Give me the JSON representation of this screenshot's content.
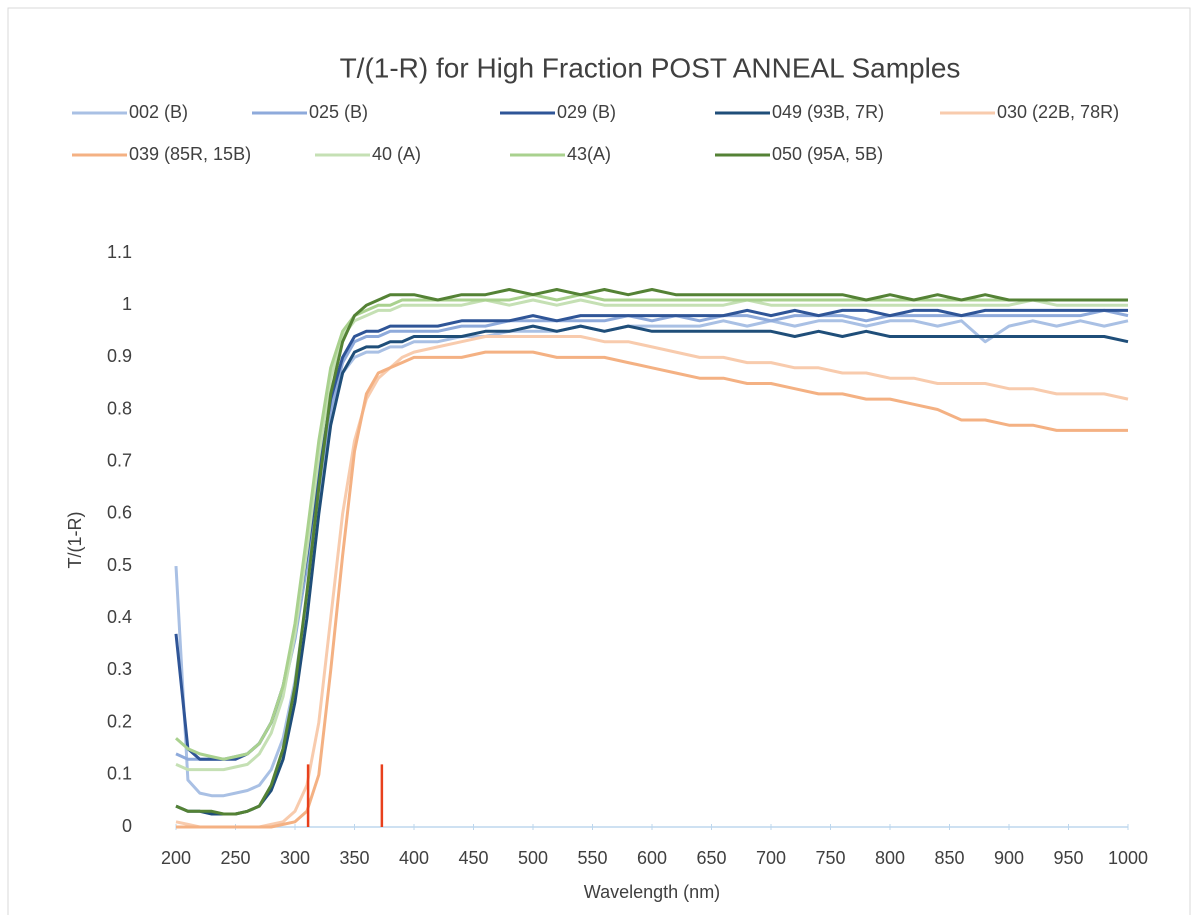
{
  "chart_data": {
    "type": "line",
    "title": "T/(1-R) for High Fraction POST ANNEAL Samples",
    "x_label": "Wavelength (nm)",
    "y_label": "T/(1-R)",
    "x": [
      200,
      210,
      220,
      230,
      240,
      250,
      260,
      270,
      280,
      290,
      300,
      310,
      320,
      330,
      340,
      350,
      360,
      370,
      380,
      390,
      400,
      420,
      440,
      460,
      480,
      500,
      520,
      540,
      560,
      580,
      600,
      620,
      640,
      660,
      680,
      700,
      720,
      740,
      760,
      780,
      800,
      820,
      840,
      860,
      880,
      900,
      920,
      940,
      960,
      980,
      1000
    ],
    "xlim": [
      200,
      1000
    ],
    "xticks": [
      200,
      250,
      300,
      350,
      400,
      450,
      500,
      550,
      600,
      650,
      700,
      750,
      800,
      850,
      900,
      950,
      1000
    ],
    "ylim": [
      0,
      1.1
    ],
    "yticks": [
      0,
      0.1,
      0.2,
      0.3,
      0.4,
      0.5,
      0.6,
      0.7,
      0.8,
      0.9,
      1,
      1.1
    ],
    "grid": false,
    "series": [
      {
        "name": "002 (B)",
        "color": "#a9c0e4",
        "values": [
          0.5,
          0.09,
          0.065,
          0.06,
          0.06,
          0.065,
          0.07,
          0.08,
          0.11,
          0.17,
          0.28,
          0.44,
          0.62,
          0.78,
          0.87,
          0.9,
          0.91,
          0.91,
          0.92,
          0.92,
          0.93,
          0.93,
          0.94,
          0.94,
          0.95,
          0.95,
          0.95,
          0.96,
          0.95,
          0.96,
          0.96,
          0.96,
          0.96,
          0.97,
          0.96,
          0.97,
          0.96,
          0.97,
          0.97,
          0.96,
          0.97,
          0.97,
          0.96,
          0.97,
          0.93,
          0.96,
          0.97,
          0.96,
          0.97,
          0.96,
          0.97
        ]
      },
      {
        "name": "025 (B)",
        "color": "#8eaadb",
        "values": [
          0.14,
          0.13,
          0.13,
          0.13,
          0.13,
          0.135,
          0.14,
          0.16,
          0.2,
          0.26,
          0.36,
          0.5,
          0.66,
          0.8,
          0.89,
          0.93,
          0.94,
          0.94,
          0.95,
          0.95,
          0.95,
          0.95,
          0.96,
          0.96,
          0.97,
          0.97,
          0.97,
          0.97,
          0.97,
          0.98,
          0.97,
          0.98,
          0.97,
          0.98,
          0.98,
          0.97,
          0.98,
          0.98,
          0.98,
          0.97,
          0.98,
          0.98,
          0.98,
          0.98,
          0.98,
          0.98,
          0.98,
          0.98,
          0.98,
          0.99,
          0.98
        ]
      },
      {
        "name": "029 (B)",
        "color": "#2f5597",
        "values": [
          0.37,
          0.15,
          0.13,
          0.13,
          0.13,
          0.13,
          0.14,
          0.16,
          0.2,
          0.27,
          0.38,
          0.52,
          0.68,
          0.82,
          0.9,
          0.94,
          0.95,
          0.95,
          0.96,
          0.96,
          0.96,
          0.96,
          0.97,
          0.97,
          0.97,
          0.98,
          0.97,
          0.98,
          0.98,
          0.98,
          0.98,
          0.98,
          0.98,
          0.98,
          0.99,
          0.98,
          0.99,
          0.98,
          0.99,
          0.99,
          0.98,
          0.99,
          0.99,
          0.98,
          0.99,
          0.99,
          0.99,
          0.99,
          0.99,
          0.99,
          0.99
        ]
      },
      {
        "name": "049 (93B, 7R)",
        "color": "#1f4e79",
        "values": [
          0.04,
          0.03,
          0.03,
          0.025,
          0.025,
          0.025,
          0.03,
          0.04,
          0.07,
          0.13,
          0.24,
          0.4,
          0.6,
          0.77,
          0.87,
          0.91,
          0.92,
          0.92,
          0.93,
          0.93,
          0.94,
          0.94,
          0.94,
          0.95,
          0.95,
          0.96,
          0.95,
          0.96,
          0.95,
          0.96,
          0.95,
          0.95,
          0.95,
          0.95,
          0.95,
          0.95,
          0.94,
          0.95,
          0.94,
          0.95,
          0.94,
          0.94,
          0.94,
          0.94,
          0.94,
          0.94,
          0.94,
          0.94,
          0.94,
          0.94,
          0.93
        ]
      },
      {
        "name": "030 (22B, 78R)",
        "color": "#f8cbad",
        "values": [
          0.01,
          0.005,
          0,
          0,
          0,
          0,
          0,
          0,
          0.005,
          0.01,
          0.03,
          0.08,
          0.2,
          0.4,
          0.6,
          0.74,
          0.82,
          0.86,
          0.88,
          0.9,
          0.91,
          0.92,
          0.93,
          0.94,
          0.94,
          0.94,
          0.94,
          0.94,
          0.93,
          0.93,
          0.92,
          0.91,
          0.9,
          0.9,
          0.89,
          0.89,
          0.88,
          0.88,
          0.87,
          0.87,
          0.86,
          0.86,
          0.85,
          0.85,
          0.85,
          0.84,
          0.84,
          0.83,
          0.83,
          0.83,
          0.82
        ]
      },
      {
        "name": "039 (85R, 15B)",
        "color": "#f4b183",
        "values": [
          0,
          0,
          0,
          0,
          0,
          0,
          0,
          0,
          0,
          0.005,
          0.01,
          0.03,
          0.1,
          0.3,
          0.52,
          0.72,
          0.83,
          0.87,
          0.88,
          0.89,
          0.9,
          0.9,
          0.9,
          0.91,
          0.91,
          0.91,
          0.9,
          0.9,
          0.9,
          0.89,
          0.88,
          0.87,
          0.86,
          0.86,
          0.85,
          0.85,
          0.84,
          0.83,
          0.83,
          0.82,
          0.82,
          0.81,
          0.8,
          0.78,
          0.78,
          0.77,
          0.77,
          0.76,
          0.76,
          0.76,
          0.76
        ]
      },
      {
        "name": "40 (A)",
        "color": "#c5e0b4",
        "values": [
          0.12,
          0.11,
          0.11,
          0.11,
          0.11,
          0.115,
          0.12,
          0.14,
          0.18,
          0.25,
          0.37,
          0.53,
          0.71,
          0.86,
          0.94,
          0.97,
          0.98,
          0.99,
          0.99,
          1.0,
          1.0,
          1.0,
          1.0,
          1.01,
          1.0,
          1.01,
          1.0,
          1.01,
          1.0,
          1.0,
          1.0,
          1.0,
          1.0,
          1.0,
          1.01,
          1.0,
          1.0,
          1.0,
          1.0,
          1.0,
          1.0,
          1.0,
          1.0,
          1.0,
          1.0,
          1.0,
          1.01,
          1.0,
          1.0,
          1.0,
          1.0
        ]
      },
      {
        "name": "43(A)",
        "color": "#a9d18e",
        "values": [
          0.17,
          0.15,
          0.14,
          0.135,
          0.13,
          0.135,
          0.14,
          0.16,
          0.2,
          0.27,
          0.39,
          0.56,
          0.74,
          0.88,
          0.95,
          0.98,
          0.99,
          1.0,
          1.0,
          1.01,
          1.01,
          1.01,
          1.01,
          1.01,
          1.01,
          1.02,
          1.01,
          1.02,
          1.01,
          1.01,
          1.01,
          1.01,
          1.01,
          1.01,
          1.01,
          1.01,
          1.01,
          1.01,
          1.01,
          1.01,
          1.01,
          1.01,
          1.01,
          1.01,
          1.01,
          1.01,
          1.01,
          1.01,
          1.01,
          1.01,
          1.01
        ]
      },
      {
        "name": "050 (95A, 5B)",
        "color": "#548235",
        "values": [
          0.04,
          0.03,
          0.03,
          0.03,
          0.025,
          0.025,
          0.03,
          0.04,
          0.08,
          0.15,
          0.27,
          0.45,
          0.65,
          0.83,
          0.93,
          0.98,
          1.0,
          1.01,
          1.02,
          1.02,
          1.02,
          1.01,
          1.02,
          1.02,
          1.03,
          1.02,
          1.03,
          1.02,
          1.03,
          1.02,
          1.03,
          1.02,
          1.02,
          1.02,
          1.02,
          1.02,
          1.02,
          1.02,
          1.02,
          1.01,
          1.02,
          1.01,
          1.02,
          1.01,
          1.02,
          1.01,
          1.01,
          1.01,
          1.01,
          1.01,
          1.01
        ]
      }
    ],
    "markers": {
      "x": [
        311,
        373
      ],
      "y": [
        0,
        0.12
      ],
      "color": "#e8401c"
    }
  }
}
